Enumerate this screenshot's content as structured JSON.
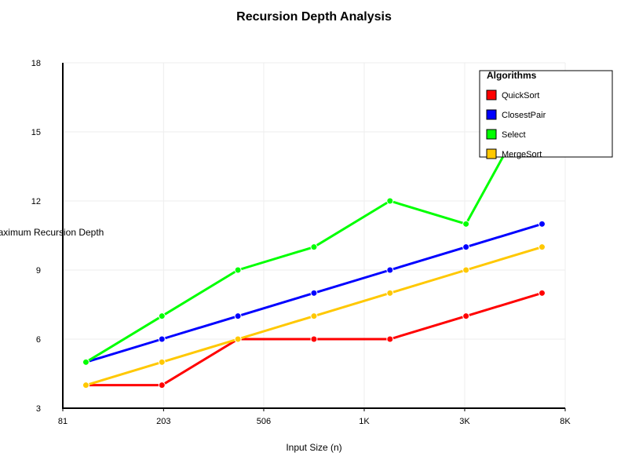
{
  "chart_data": {
    "type": "line",
    "title": "Recursion Depth Analysis",
    "xlabel": "Input Size (n)",
    "ylabel": "Maximum Recursion Depth",
    "x_scale": "log",
    "x": [
      100,
      200,
      400,
      800,
      1600,
      3200,
      6400
    ],
    "x_ticks": [
      81,
      203,
      506,
      1265,
      3162,
      7906
    ],
    "x_tick_labels": [
      "81",
      "203",
      "506",
      "1K",
      "3K",
      "8K"
    ],
    "ylim": [
      3,
      18
    ],
    "y_ticks": [
      3,
      6,
      9,
      12,
      15,
      18
    ],
    "grid": true,
    "legend": {
      "title": "Algorithms",
      "position": "top-right"
    },
    "series": [
      {
        "name": "QuickSort",
        "color": "#ff0000",
        "values": [
          4,
          4,
          6,
          6,
          6,
          7,
          8
        ]
      },
      {
        "name": "ClosestPair",
        "color": "#0000ff",
        "values": [
          5,
          6,
          7,
          8,
          9,
          10,
          11
        ]
      },
      {
        "name": "Select",
        "color": "#00ff00",
        "values": [
          5,
          7,
          9,
          10,
          12,
          11,
          17
        ]
      },
      {
        "name": "MergeSort",
        "color": "#ffc800",
        "values": [
          4,
          5,
          6,
          7,
          8,
          9,
          10
        ]
      }
    ]
  }
}
